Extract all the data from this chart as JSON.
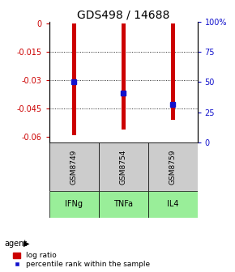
{
  "title": "GDS498 / 14688",
  "samples": [
    "GSM8749",
    "GSM8754",
    "GSM8759"
  ],
  "agents": [
    "IFNg",
    "TNFa",
    "IL4"
  ],
  "log_ratios": [
    -0.059,
    -0.056,
    -0.051
  ],
  "percentile_values": [
    -0.031,
    -0.037,
    -0.043
  ],
  "percentile_pct": [
    50,
    37,
    25
  ],
  "ylim_left": [
    -0.063,
    0.001
  ],
  "yticks_left": [
    0,
    -0.015,
    -0.03,
    -0.045,
    -0.06
  ],
  "yticks_right": [
    0,
    25,
    50,
    75,
    100
  ],
  "bar_color": "#cc0000",
  "dot_color": "#1111cc",
  "agent_color": "#99ee99",
  "sample_color": "#cccccc",
  "bar_width": 0.08,
  "title_fontsize": 10,
  "legend_fontsize": 6.5,
  "tick_fontsize": 7,
  "label_fontsize": 7
}
